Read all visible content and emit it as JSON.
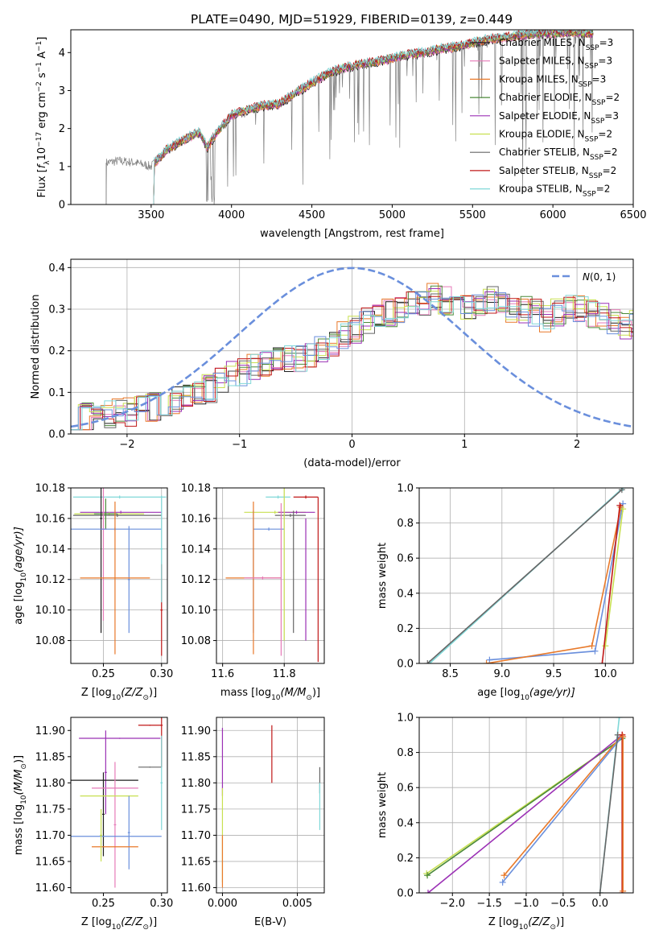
{
  "title": "PLATE=0490, MJD=51929, FIBERID=0139, z=0.449",
  "colors": {
    "Chabrier MILES": "#1f1f1f",
    "Salpeter MILES": "#e67ab8",
    "Kroupa MILES": "#e8792a",
    "Chabrier ELODIE": "#4c8a3a",
    "Salpeter ELODIE": "#9b30b5",
    "Kroupa ELODIE": "#c8e050",
    "Chabrier STELIB": "#666666",
    "Salpeter STELIB": "#c01818",
    "Kroupa STELIB": "#80d8d8",
    "data": "#808080",
    "blue": "#6a8fdc",
    "normal": "#6a8fdc"
  },
  "chart_data": [
    {
      "type": "line",
      "id": "spectrum",
      "xlabel": "wavelength [Angstrom, rest frame]",
      "ylabel_parts": [
        "Flux [",
        "f",
        "λ",
        "10",
        "−17",
        " erg cm",
        "−2",
        " s",
        "−1",
        " A",
        "−1",
        "]"
      ],
      "xlim": [
        3000,
        6500
      ],
      "ylim": [
        0,
        4.6
      ],
      "xticks": [
        3500,
        4000,
        4500,
        5000,
        5500,
        6000,
        6500
      ],
      "yticks": [
        0,
        1,
        2,
        3,
        4
      ],
      "anchors": [
        [
          3220,
          1.1
        ],
        [
          3300,
          1.15
        ],
        [
          3400,
          1.1
        ],
        [
          3450,
          1.05
        ],
        [
          3500,
          1.0
        ],
        [
          3600,
          1.45
        ],
        [
          3700,
          1.7
        ],
        [
          3800,
          1.9
        ],
        [
          3850,
          1.5
        ],
        [
          3900,
          1.85
        ],
        [
          3950,
          2.1
        ],
        [
          4000,
          2.35
        ],
        [
          4100,
          2.5
        ],
        [
          4200,
          2.6
        ],
        [
          4300,
          2.65
        ],
        [
          4400,
          2.95
        ],
        [
          4500,
          3.2
        ],
        [
          4600,
          3.45
        ],
        [
          4700,
          3.6
        ],
        [
          4800,
          3.7
        ],
        [
          4900,
          3.75
        ],
        [
          5000,
          3.85
        ],
        [
          5100,
          3.95
        ],
        [
          5200,
          4.0
        ],
        [
          5300,
          4.1
        ],
        [
          5400,
          4.15
        ],
        [
          5500,
          4.25
        ],
        [
          5600,
          4.35
        ],
        [
          5700,
          4.4
        ],
        [
          5800,
          4.45
        ],
        [
          5900,
          4.5
        ],
        [
          6000,
          4.5
        ],
        [
          6100,
          4.55
        ],
        [
          6250,
          4.5
        ]
      ],
      "legend": [
        {
          "label": "Chabrier MILES",
          "nssp": "3"
        },
        {
          "label": "Salpeter MILES",
          "nssp": "3"
        },
        {
          "label": "Kroupa MILES",
          "nssp": "3"
        },
        {
          "label": "Chabrier ELODIE",
          "nssp": "2"
        },
        {
          "label": "Salpeter ELODIE",
          "nssp": "3"
        },
        {
          "label": "Kroupa ELODIE",
          "nssp": "2"
        },
        {
          "label": "Chabrier STELIB",
          "nssp": "2"
        },
        {
          "label": "Salpeter STELIB",
          "nssp": "2"
        },
        {
          "label": "Kroupa STELIB",
          "nssp": "2"
        }
      ],
      "legend_sub": "SSP",
      "legend_var": "N"
    },
    {
      "type": "bar",
      "id": "residuals",
      "xlabel": "(data-model)/error",
      "ylabel": "Normed distribution",
      "xlim": [
        -2.5,
        2.5
      ],
      "ylim": [
        0,
        0.42
      ],
      "xticks": [
        -2,
        -1,
        0,
        1,
        2
      ],
      "xtick_labels": [
        "−2",
        "−1",
        "0",
        "1",
        "2"
      ],
      "yticks": [
        0.0,
        0.1,
        0.2,
        0.3,
        0.4
      ],
      "ytick_labels": [
        "0.0",
        "0.1",
        "0.2",
        "0.3",
        "0.4"
      ],
      "bin_width": 0.1,
      "base_profile": [
        0.035,
        0.04,
        0.042,
        0.045,
        0.05,
        0.052,
        0.06,
        0.065,
        0.075,
        0.08,
        0.09,
        0.1,
        0.11,
        0.13,
        0.14,
        0.15,
        0.16,
        0.17,
        0.18,
        0.18,
        0.18,
        0.19,
        0.2,
        0.22,
        0.24,
        0.25,
        0.27,
        0.28,
        0.29,
        0.3,
        0.31,
        0.32,
        0.33,
        0.32,
        0.3,
        0.3,
        0.31,
        0.32,
        0.31,
        0.3,
        0.3,
        0.29,
        0.28,
        0.29,
        0.3,
        0.3,
        0.29,
        0.28,
        0.27,
        0.26,
        0.27,
        0.26,
        0.25,
        0.24,
        0.23,
        0.22,
        0.21,
        0.2,
        0.18,
        0.17,
        0.16,
        0.15,
        0.14,
        0.13,
        0.12,
        0.115,
        0.11,
        0.1,
        0.09,
        0.08
      ],
      "normal_label_pre": "N",
      "normal_label_post": "(0, 1)"
    },
    {
      "type": "scatter",
      "id": "age_vs_Z",
      "xlabel": "Z [log",
      "xlabel_sub": "10",
      "xlabel_post": "(Z/Z",
      "ylabel": "age  [log",
      "ylabel_sub": "10",
      "ylabel_post": "(age/yr)]",
      "xlim": [
        0.222,
        0.305
      ],
      "ylim": [
        10.065,
        10.18
      ],
      "xticks": [
        0.25,
        0.3
      ],
      "xtick_labels": [
        "0.25",
        "0.30"
      ],
      "yticks": [
        10.08,
        10.1,
        10.12,
        10.14,
        10.16,
        10.18
      ],
      "ytick_labels": [
        "10.08",
        "10.10",
        "10.12",
        "10.14",
        "10.16",
        "10.18"
      ],
      "points": [
        {
          "model": "Kroupa STELIB",
          "x": 0.264,
          "y": 10.174,
          "xerr": 0.04,
          "yerr": 0.001
        },
        {
          "model": "Salpeter ELODIE",
          "x": 0.265,
          "y": 10.164,
          "xerr": 0.035,
          "yerr": 0.001
        },
        {
          "model": "Kroupa ELODIE",
          "x": 0.255,
          "y": 10.163,
          "xerr": 0.03,
          "yerr": 0.001
        },
        {
          "model": "Chabrier STELIB",
          "x": 0.262,
          "y": 10.162,
          "xerr": 0.038,
          "yerr": 0.001
        },
        {
          "model": "Chabrier ELODIE",
          "x": 0.252,
          "y": 10.163,
          "xerr": 0.01,
          "yerr": 0.01
        },
        {
          "model": "Salpeter MILES",
          "x": 0.25,
          "y": 10.153,
          "xerr": 0.003,
          "yerr": 0.06
        },
        {
          "model": "Chabrier MILES",
          "x": 0.248,
          "y": 10.16,
          "xerr": 0.001,
          "yerr": 0.075
        },
        {
          "model": "blue",
          "x": 0.26,
          "y": 10.153,
          "xerr": 0.04,
          "yerr": 0.001
        },
        {
          "model": "blue",
          "x": 0.272,
          "y": 10.12,
          "xerr": 0.001,
          "yerr": 0.035
        },
        {
          "model": "Kroupa MILES",
          "x": 0.26,
          "y": 10.121,
          "xerr": 0.03,
          "yerr": 0.05
        },
        {
          "model": "Salpeter STELIB",
          "x": 0.3,
          "y": 10.1,
          "xerr": 0.001,
          "yerr": 0.03
        },
        {
          "model": "Kroupa STELIB",
          "x": 0.3,
          "y": 10.14,
          "xerr": 0.001,
          "yerr": 0.035
        }
      ]
    },
    {
      "type": "scatter",
      "id": "age_vs_mass",
      "xlabel": "mass [log",
      "xlabel_sub": "10",
      "xlabel_post": "(M/M",
      "xlim": [
        11.58,
        11.93
      ],
      "ylim": [
        10.065,
        10.18
      ],
      "xticks": [
        11.6,
        11.8
      ],
      "xtick_labels": [
        "11.6",
        "11.8"
      ],
      "yticks": [
        10.08,
        10.1,
        10.12,
        10.14,
        10.16,
        10.18
      ],
      "ytick_labels": [
        "10.08",
        "10.10",
        "10.12",
        "10.14",
        "10.16",
        "10.18"
      ],
      "points": [
        {
          "model": "Kroupa STELIB",
          "x": 11.78,
          "y": 10.174,
          "xerr": 0.04,
          "yerr": 0.001
        },
        {
          "model": "Salpeter STELIB",
          "x": 11.87,
          "y": 10.174,
          "xerr": 0.04,
          "yerr": 0.001
        },
        {
          "model": "Salpeter STELIB",
          "x": 11.91,
          "y": 10.12,
          "xerr": 0.001,
          "yerr": 0.054
        },
        {
          "model": "Kroupa ELODIE",
          "x": 11.77,
          "y": 10.164,
          "xerr": 0.1,
          "yerr": 0.001
        },
        {
          "model": "Salpeter ELODIE",
          "x": 11.84,
          "y": 10.164,
          "xerr": 0.06,
          "yerr": 0.001
        },
        {
          "model": "Chabrier STELIB",
          "x": 11.82,
          "y": 10.162,
          "xerr": 0.05,
          "yerr": 0.001
        },
        {
          "model": "blue",
          "x": 11.75,
          "y": 10.153,
          "xerr": 0.05,
          "yerr": 0.001
        },
        {
          "model": "blue",
          "x": 11.7,
          "y": 10.125,
          "xerr": 0.001,
          "yerr": 0.04
        },
        {
          "model": "Kroupa MILES",
          "x": 11.7,
          "y": 10.121,
          "xerr": 0.09,
          "yerr": 0.05
        },
        {
          "model": "Salpeter MILES",
          "x": 11.73,
          "y": 10.121,
          "xerr": 0.06,
          "yerr": 0.001
        },
        {
          "model": "Salpeter MILES",
          "x": 11.79,
          "y": 10.12,
          "xerr": 0.001,
          "yerr": 0.05
        },
        {
          "model": "Kroupa ELODIE",
          "x": 11.8,
          "y": 10.13,
          "xerr": 0.001,
          "yerr": 0.05
        },
        {
          "model": "Chabrier STELIB",
          "x": 11.83,
          "y": 10.125,
          "xerr": 0.001,
          "yerr": 0.04
        },
        {
          "model": "Salpeter ELODIE",
          "x": 11.87,
          "y": 10.12,
          "xerr": 0.001,
          "yerr": 0.04
        }
      ]
    },
    {
      "type": "line",
      "id": "massweight_vs_age",
      "xlabel": "age  [log",
      "xlabel_sub": "10",
      "xlabel_post": "(age/yr)]",
      "ylabel": "mass weight",
      "xlim": [
        8.2,
        10.27
      ],
      "ylim": [
        0,
        1
      ],
      "xticks": [
        8.5,
        9.0,
        9.5,
        10.0
      ],
      "xtick_labels": [
        "8.5",
        "9.0",
        "9.5",
        "10.0"
      ],
      "yticks": [
        0.0,
        0.2,
        0.4,
        0.6,
        0.8,
        1.0
      ],
      "ytick_labels": [
        "0.0",
        "0.2",
        "0.4",
        "0.6",
        "0.8",
        "1.0"
      ],
      "series": [
        {
          "model": "Kroupa STELIB",
          "x": [
            8.3,
            10.17
          ],
          "y": [
            0.0,
            1.0
          ]
        },
        {
          "model": "Chabrier STELIB",
          "x": [
            8.28,
            10.16
          ],
          "y": [
            0.0,
            0.99
          ]
        },
        {
          "model": "blue",
          "x": [
            8.88,
            9.9,
            10.17
          ],
          "y": [
            0.02,
            0.07,
            0.91
          ]
        },
        {
          "model": "Kroupa MILES",
          "x": [
            8.85,
            9.87,
            10.15
          ],
          "y": [
            0.0,
            0.1,
            0.89
          ]
        },
        {
          "model": "Kroupa ELODIE",
          "x": [
            10.0,
            10.17
          ],
          "y": [
            0.1,
            0.88
          ]
        },
        {
          "model": "Salpeter STELIB",
          "x": [
            9.97,
            10.14
          ],
          "y": [
            0.0,
            0.9
          ]
        }
      ]
    },
    {
      "type": "scatter",
      "id": "mass_vs_Z",
      "xlabel": "Z [log",
      "xlabel_sub": "10",
      "xlabel_post": "(Z/Z",
      "ylabel": "mass [log",
      "ylabel_sub": "10",
      "ylabel_post": "(M/M",
      "xlim": [
        0.222,
        0.305
      ],
      "ylim": [
        11.59,
        11.925
      ],
      "xticks": [
        0.25,
        0.3
      ],
      "xtick_labels": [
        "0.25",
        "0.30"
      ],
      "yticks": [
        11.6,
        11.65,
        11.7,
        11.75,
        11.8,
        11.85,
        11.9
      ],
      "ytick_labels": [
        "11.60",
        "11.65",
        "11.70",
        "11.75",
        "11.80",
        "11.85",
        "11.90"
      ],
      "points": [
        {
          "model": "Salpeter STELIB",
          "x": 0.3,
          "y": 11.91,
          "xerr": 0.001,
          "yerr": 0.08
        },
        {
          "model": "Salpeter STELIB",
          "x": 0.29,
          "y": 11.91,
          "xerr": 0.01,
          "yerr": 0.001
        },
        {
          "model": "Salpeter ELODIE",
          "x": 0.264,
          "y": 11.885,
          "xerr": 0.035,
          "yerr": 0.001
        },
        {
          "model": "Salpeter ELODIE",
          "x": 0.252,
          "y": 11.82,
          "xerr": 0.001,
          "yerr": 0.08
        },
        {
          "model": "Chabrier STELIB",
          "x": 0.29,
          "y": 11.83,
          "xerr": 0.01,
          "yerr": 0.001
        },
        {
          "model": "Chabrier MILES",
          "x": 0.25,
          "y": 11.805,
          "xerr": 0.03,
          "yerr": 0.001
        },
        {
          "model": "Chabrier MILES",
          "x": 0.25,
          "y": 11.74,
          "xerr": 0.001,
          "yerr": 0.08
        },
        {
          "model": "Salpeter MILES",
          "x": 0.26,
          "y": 11.79,
          "xerr": 0.02,
          "yerr": 0.001
        },
        {
          "model": "Salpeter MILES",
          "x": 0.26,
          "y": 11.72,
          "xerr": 0.001,
          "yerr": 0.12
        },
        {
          "model": "Kroupa ELODIE",
          "x": 0.255,
          "y": 11.775,
          "xerr": 0.025,
          "yerr": 0.001
        },
        {
          "model": "Kroupa STELIB",
          "x": 0.3,
          "y": 11.8,
          "xerr": 0.001,
          "yerr": 0.09
        },
        {
          "model": "blue",
          "x": 0.26,
          "y": 11.698,
          "xerr": 0.04,
          "yerr": 0.001
        },
        {
          "model": "blue",
          "x": 0.272,
          "y": 11.705,
          "xerr": 0.001,
          "yerr": 0.07
        },
        {
          "model": "Kroupa MILES",
          "x": 0.26,
          "y": 11.678,
          "xerr": 0.02,
          "yerr": 0.001
        },
        {
          "model": "Kroupa ELODIE",
          "x": 0.248,
          "y": 11.7,
          "xerr": 0.001,
          "yerr": 0.05
        }
      ]
    },
    {
      "type": "scatter",
      "id": "mass_vs_ebv",
      "xlabel": "E(B-V)",
      "xlim": [
        -0.0004,
        0.0068
      ],
      "ylim": [
        11.59,
        11.925
      ],
      "xticks": [
        0.0,
        0.005
      ],
      "xtick_labels": [
        "0.000",
        "0.005"
      ],
      "yticks": [
        11.6,
        11.65,
        11.7,
        11.75,
        11.8,
        11.85,
        11.9
      ],
      "ytick_labels": [
        "11.60",
        "11.65",
        "11.70",
        "11.75",
        "11.80",
        "11.85",
        "11.90"
      ],
      "points": [
        {
          "model": "Salpeter ELODIE",
          "x": 0.0,
          "y": 11.84,
          "xerr": 0.0,
          "yerr": 0.065
        },
        {
          "model": "Kroupa ELODIE",
          "x": 0.0,
          "y": 11.7,
          "xerr": 0.0,
          "yerr": 0.09
        },
        {
          "model": "Kroupa MILES",
          "x": 0.0,
          "y": 11.65,
          "xerr": 0.0,
          "yerr": 0.05
        },
        {
          "model": "Salpeter STELIB",
          "x": 0.0033,
          "y": 11.855,
          "xerr": 0.0,
          "yerr": 0.055
        },
        {
          "model": "Chabrier STELIB",
          "x": 0.0065,
          "y": 11.805,
          "xerr": 0.0,
          "yerr": 0.025
        },
        {
          "model": "Kroupa STELIB",
          "x": 0.0065,
          "y": 11.755,
          "xerr": 0.0,
          "yerr": 0.045
        }
      ]
    },
    {
      "type": "line",
      "id": "massweight_vs_Z",
      "xlabel": "Z [log",
      "xlabel_sub": "10",
      "xlabel_post": "(Z/Z",
      "ylabel": "mass weight",
      "xlim": [
        -2.45,
        0.45
      ],
      "ylim": [
        0,
        1
      ],
      "xticks": [
        -2.0,
        -1.5,
        -1.0,
        -0.5,
        0.0
      ],
      "xtick_labels": [
        "−2.0",
        "−1.5",
        "−1.0",
        "−0.5",
        "0.0"
      ],
      "yticks": [
        0.0,
        0.2,
        0.4,
        0.6,
        0.8,
        1.0
      ],
      "ytick_labels": [
        "0.0",
        "0.2",
        "0.4",
        "0.6",
        "0.8",
        "1.0"
      ],
      "series": [
        {
          "model": "Kroupa ELODIE",
          "x": [
            -2.35,
            0.3
          ],
          "y": [
            0.11,
            0.88
          ]
        },
        {
          "model": "Chabrier ELODIE",
          "x": [
            -2.34,
            0.3
          ],
          "y": [
            0.1,
            0.88
          ]
        },
        {
          "model": "Salpeter ELODIE",
          "x": [
            -2.33,
            0.3
          ],
          "y": [
            0.0,
            0.9
          ]
        },
        {
          "model": "blue",
          "x": [
            -1.32,
            0.3
          ],
          "y": [
            0.06,
            0.89
          ]
        },
        {
          "model": "Kroupa MILES",
          "x": [
            -1.3,
            0.3
          ],
          "y": [
            0.1,
            0.9
          ]
        },
        {
          "model": "Kroupa STELIB",
          "x": [
            0.0,
            0.26
          ],
          "y": [
            0.0,
            1.0
          ]
        },
        {
          "model": "Chabrier STELIB",
          "x": [
            0.0,
            0.24
          ],
          "y": [
            0.0,
            0.9
          ]
        },
        {
          "model": "Salpeter STELIB",
          "x": [
            0.3,
            0.3
          ],
          "y": [
            0.0,
            0.9
          ]
        },
        {
          "model": "Kroupa MILES",
          "x": [
            0.31,
            0.31
          ],
          "y": [
            0.01,
            0.89
          ]
        }
      ]
    }
  ]
}
